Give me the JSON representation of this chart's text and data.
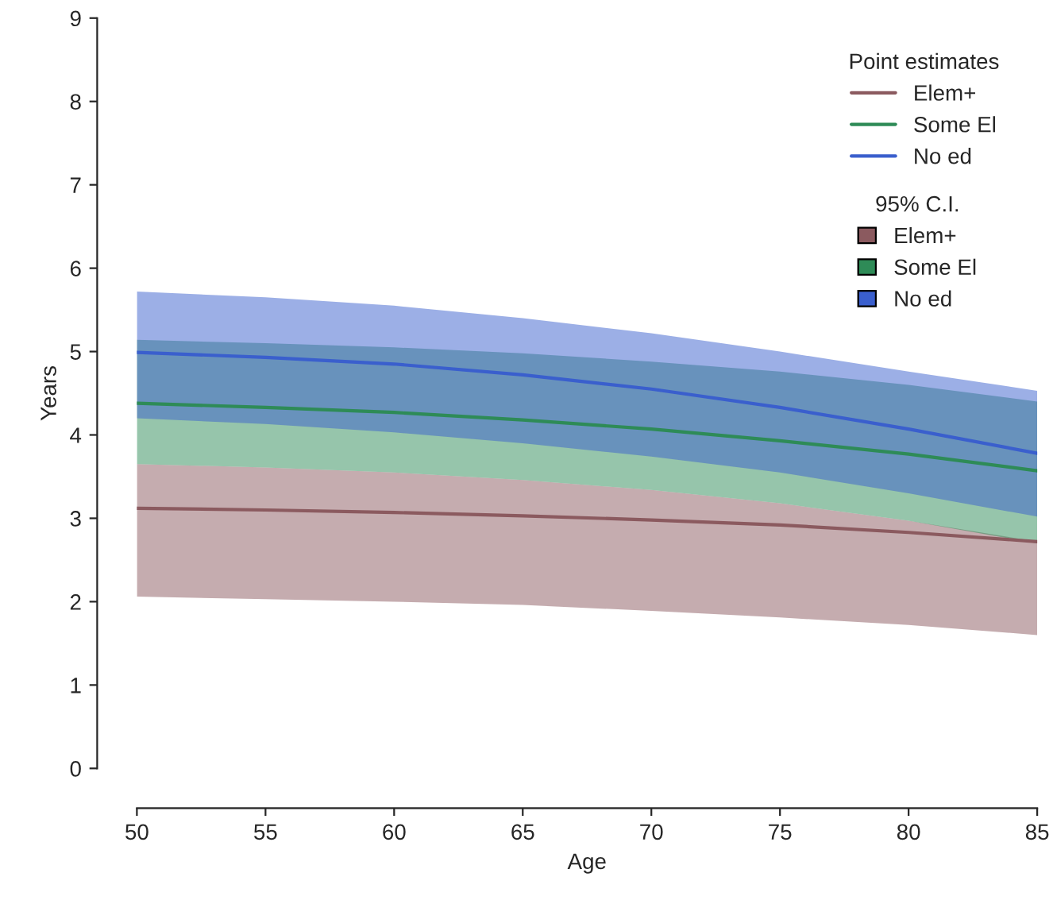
{
  "chart_data": {
    "type": "line",
    "xlabel": "Age",
    "ylabel": "Years",
    "x": [
      50,
      55,
      60,
      65,
      70,
      75,
      80,
      85
    ],
    "xlim": [
      50,
      85
    ],
    "xticks": [
      50,
      55,
      60,
      65,
      70,
      75,
      80,
      85
    ],
    "ylim": [
      0,
      9
    ],
    "yticks": [
      0,
      1,
      2,
      3,
      4,
      5,
      6,
      7,
      8,
      9
    ],
    "grid": false,
    "legend": "top right",
    "legend_title": "Point estimates",
    "annotations": [
      "95% C.I."
    ],
    "series": [
      {
        "name": "Elem+",
        "color": "#8b5a5f",
        "values": [
          3.12,
          3.1,
          3.07,
          3.03,
          2.98,
          2.92,
          2.83,
          2.72
        ],
        "lower": [
          2.06,
          2.03,
          2.0,
          1.96,
          1.89,
          1.81,
          1.72,
          1.6
        ],
        "upper": [
          3.65,
          3.61,
          3.55,
          3.46,
          3.34,
          3.18,
          2.97,
          2.72
        ]
      },
      {
        "name": "Some El",
        "color": "#2e8b57",
        "values": [
          4.38,
          4.33,
          4.27,
          4.18,
          4.07,
          3.93,
          3.77,
          3.57
        ],
        "lower": [
          3.65,
          3.61,
          3.55,
          3.46,
          3.34,
          3.18,
          2.97,
          2.7
        ],
        "upper": [
          5.14,
          5.1,
          5.05,
          4.98,
          4.88,
          4.76,
          4.6,
          4.4
        ]
      },
      {
        "name": "No ed",
        "color": "#3a5fcd",
        "values": [
          4.99,
          4.93,
          4.85,
          4.72,
          4.55,
          4.33,
          4.07,
          3.78
        ],
        "lower": [
          4.2,
          4.13,
          4.03,
          3.9,
          3.74,
          3.55,
          3.3,
          3.02
        ],
        "upper": [
          5.72,
          5.65,
          5.55,
          5.4,
          5.22,
          5.0,
          4.76,
          4.53
        ]
      }
    ]
  }
}
